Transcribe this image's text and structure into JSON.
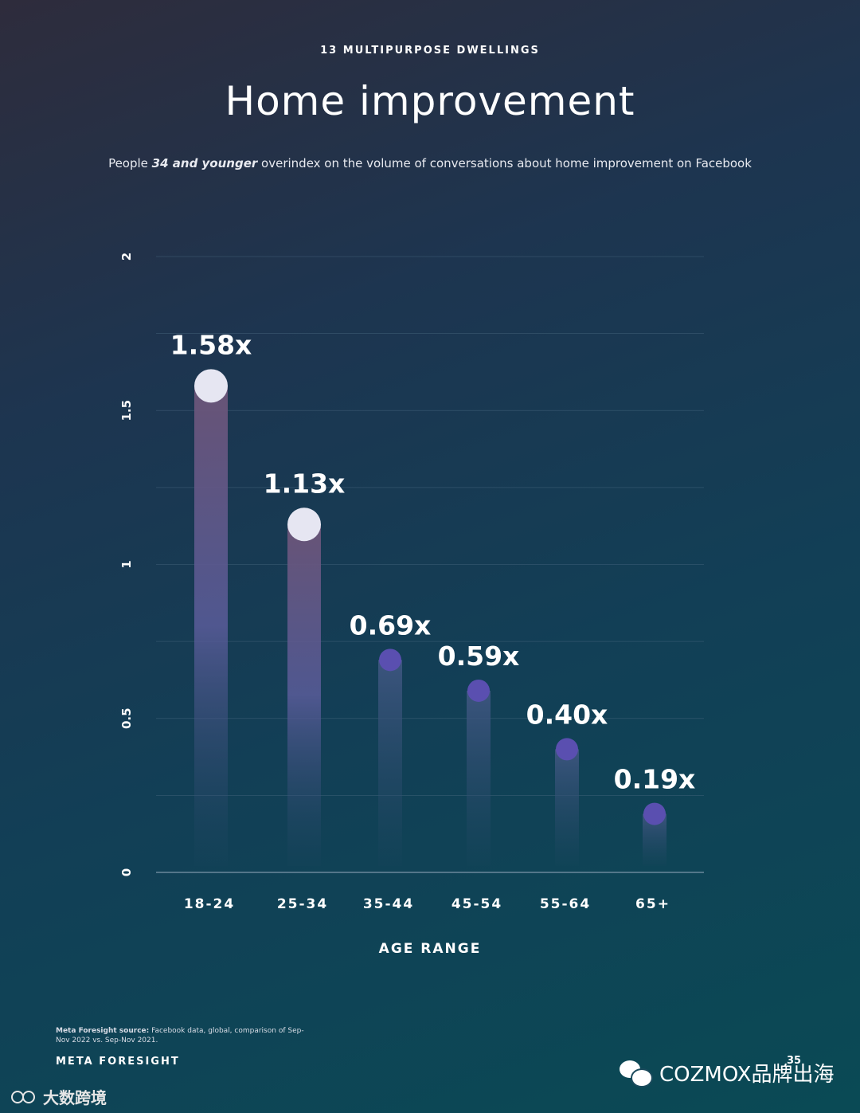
{
  "header": {
    "kicker": "13 MULTIPURPOSE DWELLINGS",
    "title": "Home improvement",
    "subtitle_pre": "People ",
    "subtitle_em": "34 and younger",
    "subtitle_post": " overindex on the volume of conversations about home improvement on Facebook"
  },
  "chart_data": {
    "type": "bar",
    "categories": [
      "18-24",
      "25-34",
      "35-44",
      "45-54",
      "55-64",
      "65+"
    ],
    "values": [
      1.58,
      1.13,
      0.69,
      0.59,
      0.4,
      0.19
    ],
    "data_labels": [
      "1.58x",
      "1.13x",
      "0.69x",
      "0.59x",
      "0.40x",
      "0.19x"
    ],
    "title": "",
    "xlabel": "AGE RANGE",
    "ylabel": "",
    "ylim": [
      0,
      2
    ],
    "yticks": [
      0,
      0.5,
      1,
      1.5,
      2
    ],
    "ytick_labels": [
      "0",
      "0.5",
      "1",
      "1.5",
      "2"
    ],
    "grid": true,
    "colors": {
      "highlight_marker": "#e6e6f2",
      "marker": "#5a4fb0",
      "highlight_bar": "#6a5a8c",
      "bar": "#3d5a82",
      "grid": "#4a6a82"
    },
    "highlight_count": 2
  },
  "footer": {
    "source_label": "Meta Foresight source:",
    "source_text": " Facebook data, global, comparison of Sep-Nov 2022 vs. Sep-Nov 2021.",
    "brand": "META FORESIGHT",
    "page_number": "35"
  },
  "watermarks": {
    "right": "COZMOX品牌出海",
    "left": "大数跨境",
    "right_icon": "wechat-icon",
    "left_icon": "kuajing-logo-icon"
  }
}
